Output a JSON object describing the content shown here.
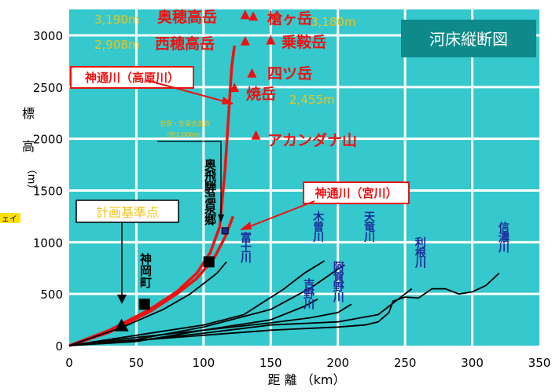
{
  "chart_data": {
    "type": "line",
    "title": "河床縦断図",
    "xlabel": "距 離 （km）",
    "ylabel": [
      "標",
      "高",
      "（m）"
    ],
    "xlim": [
      0,
      350
    ],
    "ylim": [
      0,
      3200
    ],
    "xticks": [
      0,
      50,
      100,
      150,
      200,
      250,
      300,
      350
    ],
    "yticks": [
      0,
      500,
      1000,
      1500,
      2000,
      2500,
      3000
    ],
    "grid": true,
    "colors": {
      "plot_bg": "#35c8cc",
      "grid": "#ffffff",
      "title_bg": "#0e8a8a",
      "red": "#ee1111",
      "navy": "#1a2a9a",
      "gold": "#f0c419",
      "black": "#000000"
    },
    "series": [
      {
        "name": "神通川（高原川）",
        "color": "#ee1111",
        "x": [
          0,
          30,
          60,
          80,
          95,
          105,
          112,
          116,
          119,
          121,
          123
        ],
        "y": [
          0,
          150,
          350,
          520,
          700,
          900,
          1150,
          1700,
          2300,
          2700,
          2900
        ]
      },
      {
        "name": "神通川（宮川）",
        "color": "#ee1111",
        "x": [
          0,
          30,
          60,
          80,
          95,
          108,
          116,
          122
        ],
        "y": [
          0,
          130,
          330,
          500,
          650,
          850,
          1050,
          1250
        ]
      },
      {
        "name": "富士川",
        "color": "#000000",
        "x": [
          0,
          40,
          70,
          90,
          100,
          110,
          117
        ],
        "y": [
          0,
          180,
          350,
          500,
          600,
          700,
          810
        ]
      },
      {
        "name": "木曽川",
        "color": "#000000",
        "x": [
          0,
          50,
          100,
          130,
          160,
          175,
          190
        ],
        "y": [
          0,
          100,
          200,
          300,
          550,
          700,
          820
        ]
      },
      {
        "name": "天竜川",
        "color": "#000000",
        "x": [
          0,
          50,
          100,
          150,
          180,
          200,
          205
        ],
        "y": [
          0,
          60,
          180,
          350,
          560,
          740,
          780
        ]
      },
      {
        "name": "吉野川",
        "color": "#000000",
        "x": [
          0,
          50,
          100,
          150,
          175,
          185
        ],
        "y": [
          0,
          80,
          150,
          250,
          380,
          450
        ]
      },
      {
        "name": "阿賀野川",
        "color": "#000000",
        "x": [
          0,
          50,
          100,
          150,
          180,
          200,
          210
        ],
        "y": [
          0,
          40,
          150,
          220,
          270,
          320,
          400
        ]
      },
      {
        "name": "利根川",
        "color": "#000000",
        "x": [
          0,
          50,
          100,
          150,
          200,
          230,
          240,
          250,
          255
        ],
        "y": [
          0,
          50,
          120,
          200,
          230,
          300,
          400,
          500,
          550
        ]
      },
      {
        "name": "信濃川",
        "color": "#000000",
        "x": [
          0,
          50,
          100,
          150,
          200,
          220,
          230,
          238,
          241,
          250,
          260,
          270,
          280,
          290,
          300,
          310,
          320
        ],
        "y": [
          0,
          50,
          100,
          150,
          180,
          200,
          230,
          320,
          430,
          470,
          460,
          550,
          550,
          500,
          520,
          580,
          700
        ]
      }
    ],
    "peaks": [
      {
        "name": "奥穂高岳",
        "elev": "3,190m",
        "x": 131,
        "y": 3195
      },
      {
        "name": "槍ヶ岳",
        "elev": "3,180m",
        "x": 137,
        "y": 3180
      },
      {
        "name": "西穂高岳",
        "elev": "2,908m",
        "x": 131,
        "y": 2940
      },
      {
        "name": "乗鞍岳",
        "elev": "",
        "x": 150,
        "y": 2950
      },
      {
        "name": "四ツ岳",
        "elev": "",
        "x": 136,
        "y": 2630
      },
      {
        "name": "焼岳",
        "elev": "2,455m",
        "x": 123,
        "y": 2490
      },
      {
        "name": "アカンダナ山",
        "elev": "",
        "x": 139,
        "y": 2030
      }
    ],
    "river_labels": [
      {
        "text": "富士川",
        "x": 131,
        "y": 1100
      },
      {
        "text": "木曽川",
        "x": 185,
        "y": 1300
      },
      {
        "text": "天竜川",
        "x": 223,
        "y": 1300
      },
      {
        "text": "吉野川",
        "x": 178,
        "y": 650
      },
      {
        "text": "阿賀野川",
        "x": 200,
        "y": 820
      },
      {
        "text": "利根川",
        "x": 261,
        "y": 1050
      },
      {
        "text": "信濃川",
        "x": 323,
        "y": 1200
      }
    ],
    "annotations": {
      "takahara_label": "神通川（高原川）",
      "miya_label": "神通川（宮川）",
      "keikaku": "計画基準点",
      "kamioka": "神岡町",
      "okuhida": "奥飛騨温泉郷",
      "confluence_line1": "右俣・左俣合流点",
      "confluence_line2": "（約1,000m）",
      "left_edge_fragment": "ェイ"
    },
    "markers": [
      {
        "name": "keikaku-triangle",
        "x": 39,
        "y": 200
      },
      {
        "name": "kamioka-square",
        "x": 56,
        "y": 400
      },
      {
        "name": "okuhida-square",
        "x": 104,
        "y": 810
      },
      {
        "name": "confluence-square",
        "x": 116,
        "y": 1110
      }
    ]
  }
}
